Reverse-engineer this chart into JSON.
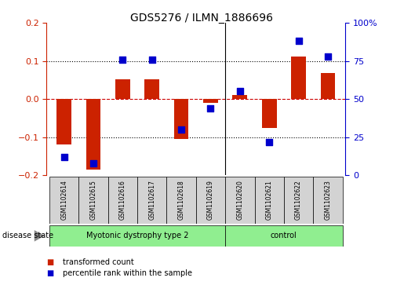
{
  "title": "GDS5276 / ILMN_1886696",
  "samples": [
    "GSM1102614",
    "GSM1102615",
    "GSM1102616",
    "GSM1102617",
    "GSM1102618",
    "GSM1102619",
    "GSM1102620",
    "GSM1102621",
    "GSM1102622",
    "GSM1102623"
  ],
  "transformed_count": [
    -0.12,
    -0.185,
    0.052,
    0.052,
    -0.105,
    -0.01,
    0.01,
    -0.075,
    0.112,
    0.068
  ],
  "percentile_rank": [
    12,
    8,
    76,
    76,
    30,
    44,
    55,
    22,
    88,
    78
  ],
  "group1_label": "Myotonic dystrophy type 2",
  "group2_label": "control",
  "group1_count": 6,
  "group2_count": 4,
  "disease_state_label": "disease state",
  "ylim_left": [
    -0.2,
    0.2
  ],
  "ylim_right": [
    0,
    100
  ],
  "yticks_left": [
    -0.2,
    -0.1,
    0.0,
    0.1,
    0.2
  ],
  "yticks_right": [
    0,
    25,
    50,
    75,
    100
  ],
  "ytick_labels_right": [
    "0",
    "25",
    "50",
    "75",
    "100%"
  ],
  "bar_color": "#CC2200",
  "dot_color": "#0000CC",
  "zero_line_color": "#CC0000",
  "bar_width": 0.5,
  "dot_size": 30,
  "n_disease": 6,
  "n_control": 4,
  "green_color": "#90EE90",
  "gray_color": "#D3D3D3",
  "legend_bar_label": "transformed count",
  "legend_dot_label": "percentile rank within the sample"
}
